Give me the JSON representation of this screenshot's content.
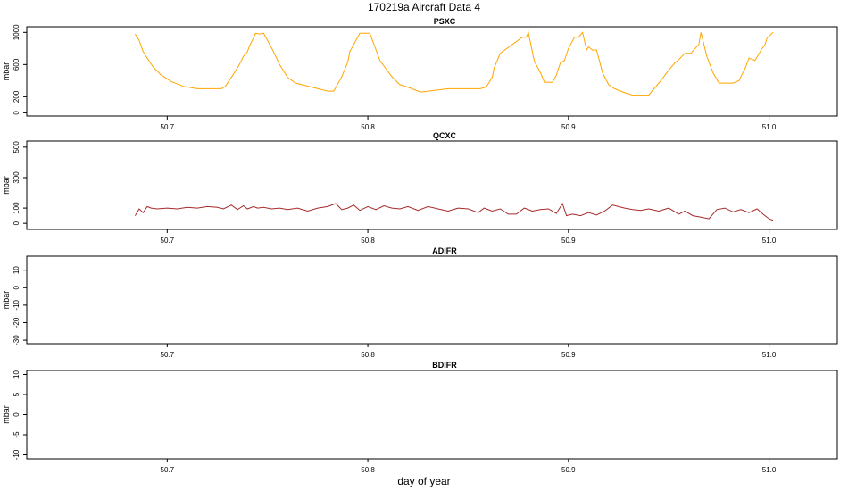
{
  "figure": {
    "title": "170219a    Aircraft Data 4",
    "xlabel": "day of year"
  },
  "chart_data": [
    {
      "type": "line",
      "title": "PSXC",
      "ylabel": "mbar",
      "xlim": [
        50.63,
        51.034
      ],
      "ylim": [
        -40,
        1070
      ],
      "xticks": [
        50.7,
        50.8,
        50.9,
        51.0
      ],
      "xtick_labels": [
        "50.7",
        "50.8",
        "50.9",
        "51.0"
      ],
      "yticks": [
        0,
        200,
        600,
        1000
      ],
      "ytick_labels": [
        "0",
        "200",
        "600",
        "1000"
      ],
      "series": [
        {
          "color": "#FFA500",
          "x": [
            50.684,
            50.686,
            50.688,
            50.69,
            50.693,
            50.697,
            50.702,
            50.708,
            50.715,
            50.727,
            50.729,
            50.733,
            50.736,
            50.738,
            50.74,
            50.741,
            50.743,
            50.744,
            50.746,
            50.748,
            50.75,
            50.753,
            50.756,
            50.76,
            50.764,
            50.78,
            50.783,
            50.787,
            50.79,
            50.791,
            50.796,
            50.798,
            50.801,
            50.806,
            50.812,
            50.816,
            50.821,
            50.826,
            50.827,
            50.84,
            50.853,
            50.856,
            50.859,
            50.862,
            50.863,
            50.866,
            50.877,
            50.879,
            50.88,
            50.883,
            50.886,
            50.888,
            50.892,
            50.894,
            50.896,
            50.898,
            50.9,
            50.903,
            50.905,
            50.907,
            50.909,
            50.91,
            50.912,
            50.914,
            50.917,
            50.92,
            50.923,
            50.927,
            50.932,
            50.935,
            50.94,
            50.943,
            50.946,
            50.95,
            50.953,
            50.955,
            50.958,
            50.961,
            50.965,
            50.966,
            50.969,
            50.972,
            50.975,
            50.977,
            50.982,
            50.985,
            50.988,
            50.99,
            50.993,
            50.996,
            50.998,
            50.999,
            51.002
          ],
          "y": [
            980,
            900,
            760,
            680,
            570,
            470,
            390,
            330,
            300,
            300,
            330,
            480,
            600,
            700,
            760,
            830,
            930,
            990,
            980,
            990,
            900,
            760,
            600,
            440,
            370,
            270,
            270,
            450,
            630,
            760,
            990,
            990,
            990,
            650,
            450,
            350,
            310,
            260,
            260,
            300,
            300,
            300,
            320,
            440,
            560,
            740,
            940,
            940,
            1000,
            640,
            500,
            380,
            380,
            470,
            620,
            650,
            800,
            940,
            940,
            1000,
            780,
            820,
            780,
            780,
            500,
            350,
            300,
            260,
            220,
            220,
            220,
            310,
            400,
            530,
            620,
            660,
            740,
            740,
            850,
            1000,
            700,
            500,
            370,
            370,
            370,
            400,
            550,
            680,
            650,
            780,
            850,
            930,
            1000
          ]
        }
      ]
    },
    {
      "type": "line",
      "title": "QCXC",
      "ylabel": "mbar",
      "xlim": [
        50.63,
        51.034
      ],
      "ylim": [
        -40,
        540
      ],
      "xticks": [
        50.7,
        50.8,
        50.9,
        51.0
      ],
      "xtick_labels": [
        "50.7",
        "50.8",
        "50.9",
        "51.0"
      ],
      "yticks": [
        0,
        100,
        300,
        500
      ],
      "ytick_labels": [
        "0",
        "100",
        "300",
        "500"
      ],
      "series": [
        {
          "color": "#A52A2A",
          "x": [
            50.684,
            50.686,
            50.688,
            50.69,
            50.692,
            50.695,
            50.7,
            50.705,
            50.71,
            50.715,
            50.72,
            50.725,
            50.728,
            50.732,
            50.735,
            50.738,
            50.74,
            50.743,
            50.745,
            50.748,
            50.752,
            50.756,
            50.76,
            50.765,
            50.77,
            50.775,
            50.78,
            50.784,
            50.787,
            50.79,
            50.793,
            50.796,
            50.8,
            50.804,
            50.808,
            50.812,
            50.816,
            50.82,
            50.825,
            50.83,
            50.835,
            50.84,
            50.845,
            50.85,
            50.855,
            50.858,
            50.862,
            50.866,
            50.87,
            50.874,
            50.878,
            50.882,
            50.886,
            50.89,
            50.894,
            50.897,
            50.899,
            50.902,
            50.906,
            50.91,
            50.914,
            50.918,
            50.922,
            50.925,
            50.928,
            50.932,
            50.936,
            50.94,
            50.945,
            50.95,
            50.955,
            50.958,
            50.962,
            50.966,
            50.97,
            50.974,
            50.978,
            50.982,
            50.986,
            50.99,
            50.994,
            50.997,
            51.0,
            51.002
          ],
          "y": [
            50,
            95,
            70,
            110,
            100,
            95,
            100,
            95,
            105,
            100,
            110,
            105,
            95,
            120,
            90,
            115,
            95,
            110,
            100,
            105,
            95,
            100,
            90,
            100,
            80,
            100,
            110,
            130,
            90,
            100,
            120,
            85,
            110,
            90,
            115,
            100,
            95,
            110,
            85,
            110,
            95,
            80,
            100,
            95,
            70,
            100,
            80,
            95,
            60,
            60,
            100,
            80,
            90,
            95,
            65,
            130,
            50,
            60,
            50,
            70,
            55,
            80,
            120,
            110,
            100,
            90,
            85,
            95,
            80,
            100,
            60,
            80,
            50,
            40,
            30,
            90,
            100,
            75,
            90,
            70,
            95,
            60,
            30,
            20
          ]
        }
      ]
    },
    {
      "type": "line",
      "title": "ADIFR",
      "ylabel": "mbar",
      "xlim": [
        50.63,
        51.034
      ],
      "ylim": [
        -32,
        18
      ],
      "xticks": [
        50.7,
        50.8,
        50.9,
        51.0
      ],
      "xtick_labels": [
        "50.7",
        "50.8",
        "50.9",
        "51.0"
      ],
      "yticks": [
        -30,
        -20,
        -10,
        0,
        10
      ],
      "ytick_labels": [
        "-30",
        "-20",
        "-10",
        "0",
        "10"
      ],
      "series": []
    },
    {
      "type": "line",
      "title": "BDIFR",
      "ylabel": "mbar",
      "xlim": [
        50.63,
        51.034
      ],
      "ylim": [
        -11,
        11
      ],
      "xticks": [
        50.7,
        50.8,
        50.9,
        51.0
      ],
      "xtick_labels": [
        "50.7",
        "50.8",
        "50.9",
        "51.0"
      ],
      "yticks": [
        -10,
        -5,
        0,
        5,
        10
      ],
      "ytick_labels": [
        "-10",
        "-5",
        "0",
        "5",
        "10"
      ],
      "series": []
    }
  ]
}
